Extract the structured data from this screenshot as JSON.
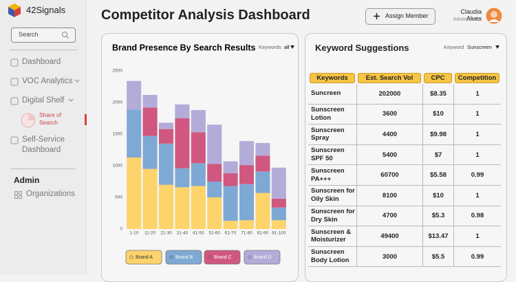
{
  "sidebar": {
    "brand": "42Signals",
    "search_placeholder": "Search",
    "nav": [
      "Dashboard",
      "VOC Analytics",
      "Digital Shelf",
      "Share of Search",
      "Self-Service Dashboard"
    ],
    "admin_heading": "Admin",
    "admin_nav": [
      "Organizations"
    ]
  },
  "header": {
    "title": "Competitor Analysis Dashboard",
    "button": "Assign Member",
    "user_name": "Claudia Alves",
    "user_role": "Administrator"
  },
  "chart_data": {
    "type": "stacked-bar",
    "title": "Brand Presence By Search Results",
    "filter_label": "Keywords",
    "filter_value": "all",
    "categories": [
      "1-10",
      "11-20",
      "21-30",
      "31-40",
      "41-50",
      "51-60",
      "61-70",
      "71-80",
      "81-90",
      "91-100"
    ],
    "series": [
      {
        "name": "Brand A",
        "color": "#fdd36b",
        "values": [
          1130,
          950,
          700,
          660,
          680,
          500,
          130,
          140,
          570,
          140
        ]
      },
      {
        "name": "Brand B",
        "color": "#7ea9d4",
        "values": [
          760,
          520,
          650,
          300,
          360,
          250,
          550,
          570,
          340,
          200
        ]
      },
      {
        "name": "Brand C",
        "color": "#d0577f",
        "values": [
          0,
          450,
          230,
          790,
          490,
          280,
          200,
          300,
          250,
          140
        ]
      },
      {
        "name": "Brand D",
        "color": "#b3acd9",
        "values": [
          450,
          200,
          100,
          220,
          350,
          620,
          190,
          380,
          200,
          490
        ]
      }
    ],
    "ylim": [
      0,
      2500
    ],
    "yticks": [
      0,
      500,
      1000,
      1500,
      2000,
      2500
    ],
    "grid": false
  },
  "keywords": {
    "title": "Keyword Suggestions",
    "filter_label": "Keyword",
    "filter_value": "Sunscreen",
    "table": {
      "columns": [
        "Keywords",
        "Est. Search Vol",
        "CPC",
        "Competition"
      ],
      "rows": [
        [
          "Suncreen",
          "202000",
          "$8.35",
          "1"
        ],
        [
          "Sunscreen Lotion",
          "3600",
          "$10",
          "1"
        ],
        [
          "Sunscreen Spray",
          "4400",
          "$9.98",
          "1"
        ],
        [
          "Sunscreen SPF 50",
          "5400",
          "$7",
          "1"
        ],
        [
          "Sunscreen PA+++",
          "60700",
          "$5.58",
          "0.99"
        ],
        [
          "Sunscreen for Oily Skin",
          "8100",
          "$10",
          "1"
        ],
        [
          "Sunscreen for Dry Skin",
          "4700",
          "$5.3",
          "0.98"
        ],
        [
          "Sunscreen & Moisturizer",
          "49400",
          "$13.47",
          "1"
        ],
        [
          "Sunscreen Body Lotion",
          "3000",
          "$5.5",
          "0.99"
        ]
      ]
    }
  }
}
